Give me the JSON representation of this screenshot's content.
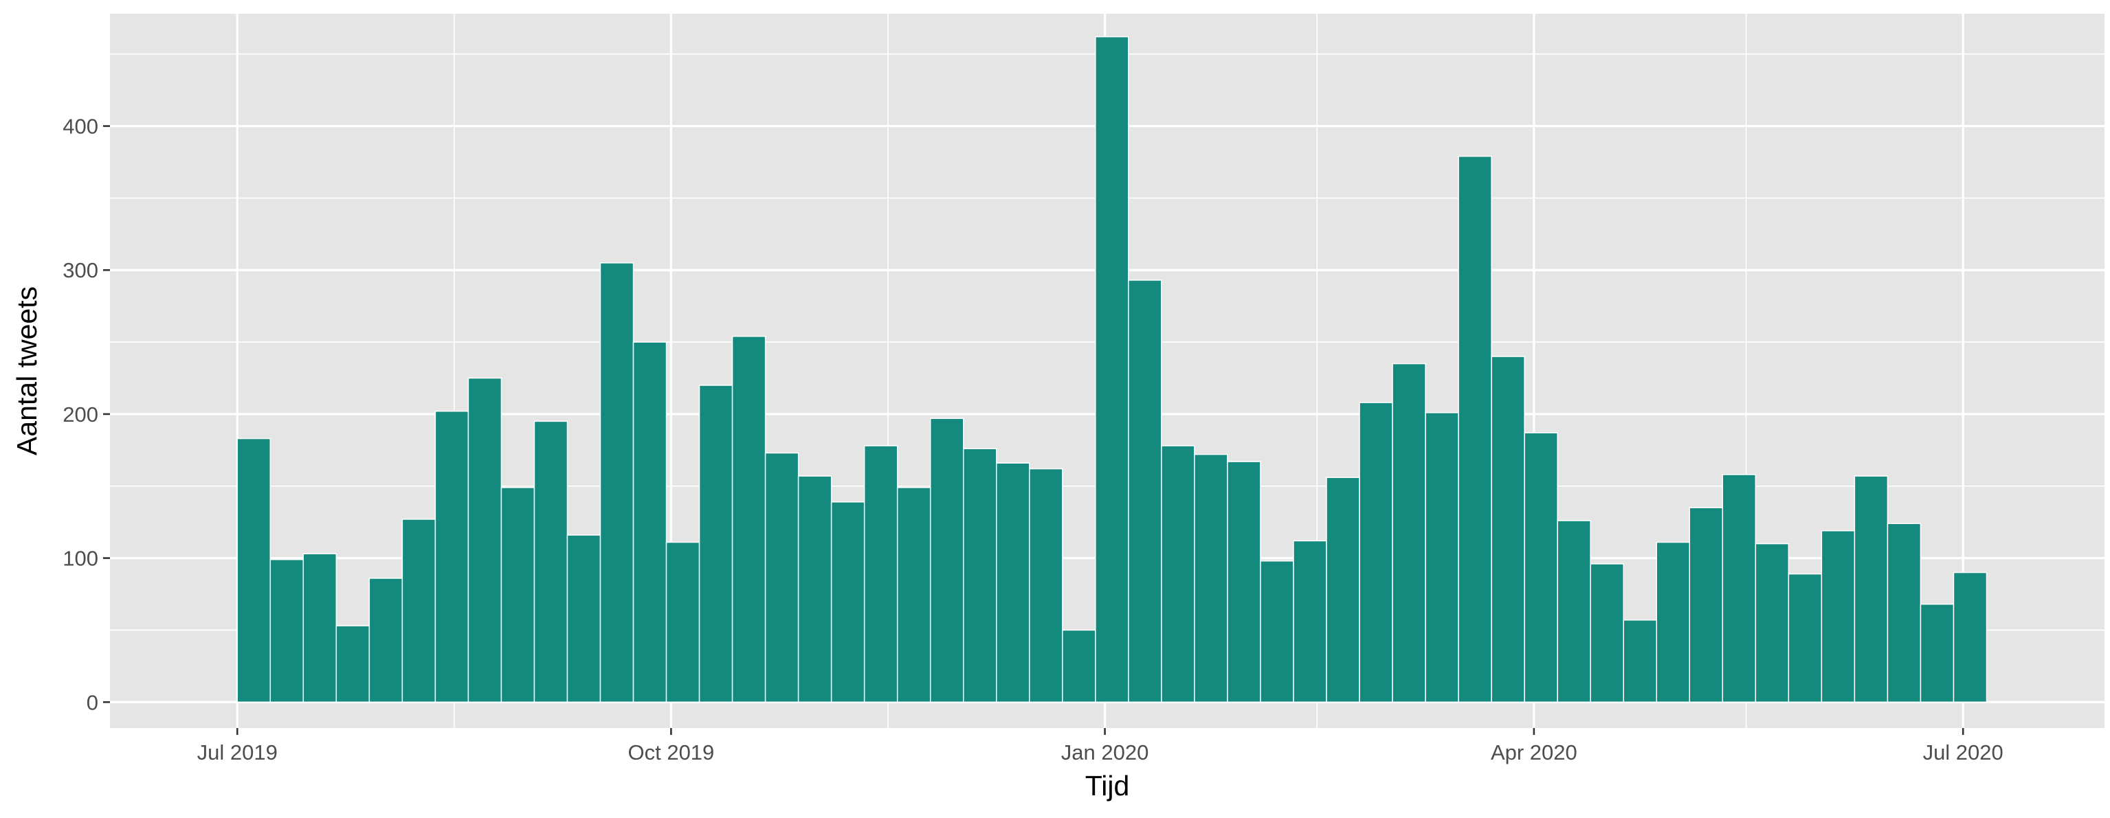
{
  "chart_data": {
    "type": "bar",
    "title": "",
    "xlabel": "Tijd",
    "ylabel": "Aantal tweets",
    "bar_color": "#138a7d",
    "panel_background": "#e5e5e5",
    "grid": true,
    "legend": "none",
    "ylim": [
      -18,
      478
    ],
    "xlim": [
      "2019-06-04",
      "2020-07-31"
    ],
    "y_ticks": [
      0,
      100,
      200,
      300,
      400
    ],
    "x_ticks": [
      {
        "date": "2019-07-01",
        "label": "Jul 2019"
      },
      {
        "date": "2019-10-01",
        "label": "Oct 2019"
      },
      {
        "date": "2020-01-01",
        "label": "Jan 2020"
      },
      {
        "date": "2020-04-01",
        "label": "Apr 2020"
      },
      {
        "date": "2020-07-01",
        "label": "Jul 2020"
      }
    ],
    "x_minor_ticks": [
      "2019-08-16",
      "2019-11-16",
      "2020-02-15",
      "2020-05-16"
    ],
    "bin_width_days": 7,
    "x": [
      "2019-07-01",
      "2019-07-08",
      "2019-07-15",
      "2019-07-22",
      "2019-07-29",
      "2019-08-05",
      "2019-08-12",
      "2019-08-19",
      "2019-08-26",
      "2019-09-02",
      "2019-09-09",
      "2019-09-16",
      "2019-09-23",
      "2019-09-30",
      "2019-10-07",
      "2019-10-14",
      "2019-10-21",
      "2019-10-28",
      "2019-11-04",
      "2019-11-11",
      "2019-11-18",
      "2019-11-25",
      "2019-12-02",
      "2019-12-09",
      "2019-12-16",
      "2019-12-23",
      "2019-12-30",
      "2020-01-06",
      "2020-01-13",
      "2020-01-20",
      "2020-01-27",
      "2020-02-03",
      "2020-02-10",
      "2020-02-17",
      "2020-02-24",
      "2020-03-02",
      "2020-03-09",
      "2020-03-16",
      "2020-03-23",
      "2020-03-30",
      "2020-04-06",
      "2020-04-13",
      "2020-04-20",
      "2020-04-27",
      "2020-05-04",
      "2020-05-11",
      "2020-05-18",
      "2020-05-25",
      "2020-06-01",
      "2020-06-08",
      "2020-06-15",
      "2020-06-22",
      "2020-06-29"
    ],
    "values": [
      183,
      99,
      103,
      53,
      86,
      127,
      202,
      225,
      149,
      195,
      116,
      305,
      250,
      111,
      220,
      254,
      173,
      157,
      139,
      178,
      149,
      197,
      176,
      166,
      162,
      50,
      462,
      293,
      178,
      172,
      167,
      98,
      112,
      156,
      208,
      235,
      201,
      379,
      240,
      187,
      126,
      96,
      57,
      111,
      135,
      158,
      110,
      89,
      119,
      157,
      124,
      68,
      90
    ]
  }
}
